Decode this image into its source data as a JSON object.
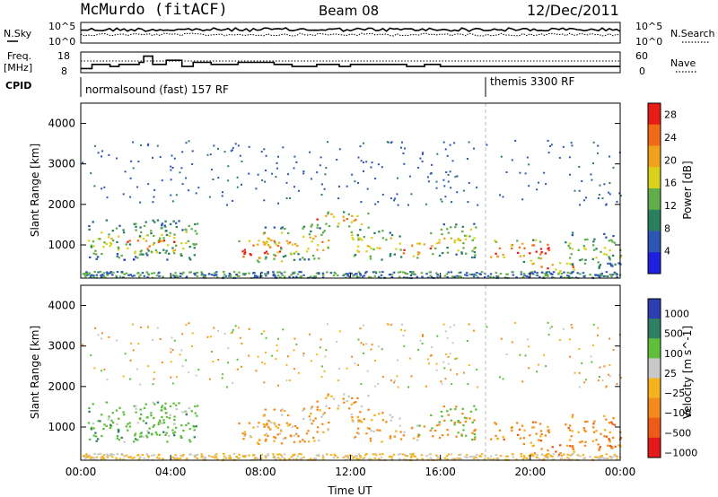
{
  "header": {
    "title": "McMurdo (fitACF)",
    "beam": "Beam 08",
    "date": "12/Dec/2011"
  },
  "top_panels": {
    "noise": {
      "left_label": "N.Sky",
      "right_label": "N.Search",
      "left_ticks": [
        "10^5",
        "10^0"
      ],
      "right_ticks": [
        "10^5",
        "10^0"
      ]
    },
    "freq": {
      "left_label_1": "Freq.",
      "left_label_2": "[MHz]",
      "right_label": "Nave",
      "left_ticks": [
        "18",
        "8"
      ],
      "right_ticks": [
        "60",
        "0"
      ]
    },
    "cpid": {
      "label": "CPID",
      "segments": [
        {
          "name": "normalsound (fast) 157 RF",
          "start_hour": 0
        },
        {
          "name": "themis 3300 RF",
          "start_hour": 18
        }
      ]
    }
  },
  "chart_data": [
    {
      "type": "heatmap",
      "title": "",
      "xlabel": "Time UT",
      "ylabel": "Slant Range [km]",
      "x_ticks": [
        "00:00",
        "04:00",
        "08:00",
        "12:00",
        "16:00",
        "20:00",
        "00:00"
      ],
      "y_ticks": [
        "1000",
        "2000",
        "3000",
        "4000"
      ],
      "xlim": [
        0,
        24
      ],
      "ylim": [
        180,
        4500
      ],
      "colorbar": {
        "label": "Power [dB]",
        "ticks": [
          "4",
          "8",
          "12",
          "16",
          "20",
          "24",
          "28"
        ],
        "range": [
          0,
          30
        ],
        "colors": [
          "#1f1fe0",
          "#2c55b4",
          "#2a7f5e",
          "#5fae4a",
          "#d9d11a",
          "#f0a21c",
          "#f26a16",
          "#e81c16"
        ]
      }
    },
    {
      "type": "heatmap",
      "title": "",
      "xlabel": "Time UT",
      "ylabel": "Slant Range [km]",
      "x_ticks": [
        "00:00",
        "04:00",
        "08:00",
        "12:00",
        "16:00",
        "20:00",
        "00:00"
      ],
      "y_ticks": [
        "1000",
        "2000",
        "3000",
        "4000"
      ],
      "xlim": [
        0,
        24
      ],
      "ylim": [
        180,
        4500
      ],
      "colorbar": {
        "label": "Velocity [m s^-1]",
        "ticks": [
          "1000",
          "500",
          "100",
          "25",
          "−25",
          "−100",
          "−500",
          "−1000"
        ],
        "colors": [
          "#2c3fb0",
          "#2f7f63",
          "#5fbf3c",
          "#c8c8c8",
          "#f6b21c",
          "#f28a1c",
          "#ee5a18",
          "#e41a1a"
        ]
      }
    }
  ],
  "scatter_regions": {
    "note_units": "hours UT and km",
    "regions": [
      {
        "t0": 0.3,
        "t1": 5.2,
        "r0": 650,
        "r1": 1650,
        "level": 0.45
      },
      {
        "t0": 2.0,
        "t1": 4.2,
        "r0": 800,
        "r1": 1300,
        "level": 0.8
      },
      {
        "t0": 7.0,
        "t1": 9.2,
        "r0": 600,
        "r1": 1150,
        "level": 0.9
      },
      {
        "t0": 8.0,
        "t1": 11.0,
        "r0": 650,
        "r1": 1500,
        "level": 0.6
      },
      {
        "t0": 10.2,
        "t1": 12.8,
        "r0": 1450,
        "r1": 1850,
        "level": 0.7
      },
      {
        "t0": 12.0,
        "t1": 14.3,
        "r0": 650,
        "r1": 1400,
        "level": 0.55
      },
      {
        "t0": 14.3,
        "t1": 15.6,
        "r0": 700,
        "r1": 1100,
        "level": 0.9
      },
      {
        "t0": 15.5,
        "t1": 17.8,
        "r0": 700,
        "r1": 1550,
        "level": 0.5
      },
      {
        "t0": 18.2,
        "t1": 20.8,
        "r0": 600,
        "r1": 1150,
        "level": 0.85
      },
      {
        "t0": 20.0,
        "t1": 22.0,
        "r0": 300,
        "r1": 650,
        "level": 0.7
      },
      {
        "t0": 21.5,
        "t1": 24.0,
        "r0": 450,
        "r1": 1350,
        "level": 0.4
      }
    ]
  }
}
